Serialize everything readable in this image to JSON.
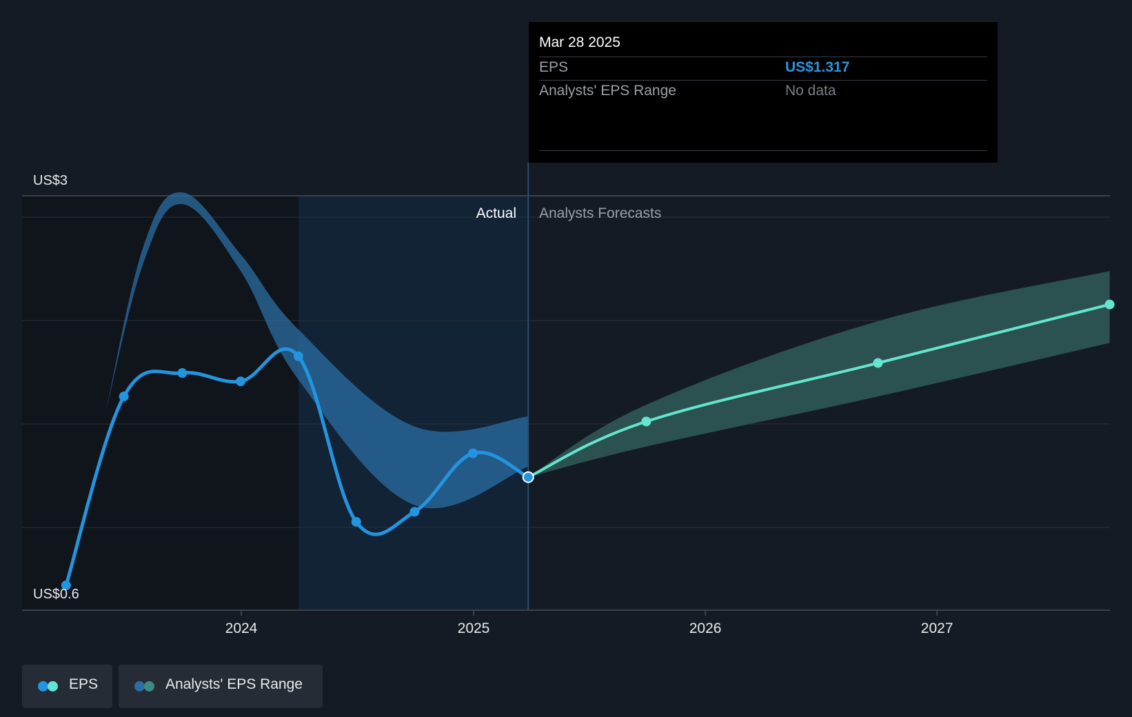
{
  "colors": {
    "background": "#151b24",
    "eps_actual": "#2394df",
    "eps_forecast": "#64e5d0",
    "range_actual": "#2b6ea3",
    "range_forecast": "#2f5b58",
    "tooltip_value": "#2f95e0",
    "tooltip_nodata": "#7a7f86"
  },
  "tooltip": {
    "date": "Mar 28 2025",
    "eps_label": "EPS",
    "eps_value": "US$1.317",
    "range_label": "Analysts' EPS Range",
    "range_value": "No data"
  },
  "regions": {
    "actual_label": "Actual",
    "forecast_label": "Analysts Forecasts"
  },
  "legend": {
    "eps": "EPS",
    "range": "Analysts' EPS Range"
  },
  "chart_data": {
    "type": "line",
    "ylim": [
      0.6,
      3.0
    ],
    "y_tick_labels": [
      "US$3",
      "US$0.6"
    ],
    "x_tick_labels": [
      "2024",
      "2025",
      "2026",
      "2027"
    ],
    "grid": true,
    "legend_position": "bottom-left",
    "series": [
      {
        "name": "EPS",
        "x": [
          "2023-03-31",
          "2023-06-30",
          "2023-09-30",
          "2023-12-31",
          "2024-03-31",
          "2024-06-30",
          "2024-09-30",
          "2024-12-31",
          "2025-03-28"
        ],
        "y": [
          0.67,
          1.8,
          1.94,
          1.89,
          2.04,
          1.05,
          1.11,
          1.46,
          1.317
        ],
        "kind": "actual"
      },
      {
        "name": "EPS",
        "x": [
          "2025-03-28",
          "2025-09-30",
          "2026-09-30",
          "2027-09-30"
        ],
        "y": [
          1.317,
          1.65,
          2.0,
          2.35
        ],
        "kind": "forecast"
      }
    ],
    "range": [
      {
        "name": "Analysts' EPS Range",
        "kind": "actual",
        "x": [
          "2023-06-01",
          "2023-07-31",
          "2023-09-30",
          "2023-12-31",
          "2024-03-31",
          "2024-09-30",
          "2025-03-28"
        ],
        "low": [
          1.7,
          2.6,
          2.95,
          2.55,
          1.9,
          1.15,
          1.38
        ],
        "high": [
          1.7,
          2.7,
          3.02,
          2.65,
          2.2,
          1.62,
          1.68
        ]
      },
      {
        "name": "Analysts' EPS Range",
        "kind": "forecast",
        "x": [
          "2025-03-28",
          "2025-09-30",
          "2026-09-30",
          "2027-09-30"
        ],
        "low": [
          1.317,
          1.5,
          1.8,
          2.12
        ],
        "high": [
          1.317,
          1.75,
          2.25,
          2.55
        ]
      }
    ],
    "highlight_period": [
      "2024-03-31",
      "2025-03-28"
    ],
    "current_date": "2025-03-28"
  }
}
